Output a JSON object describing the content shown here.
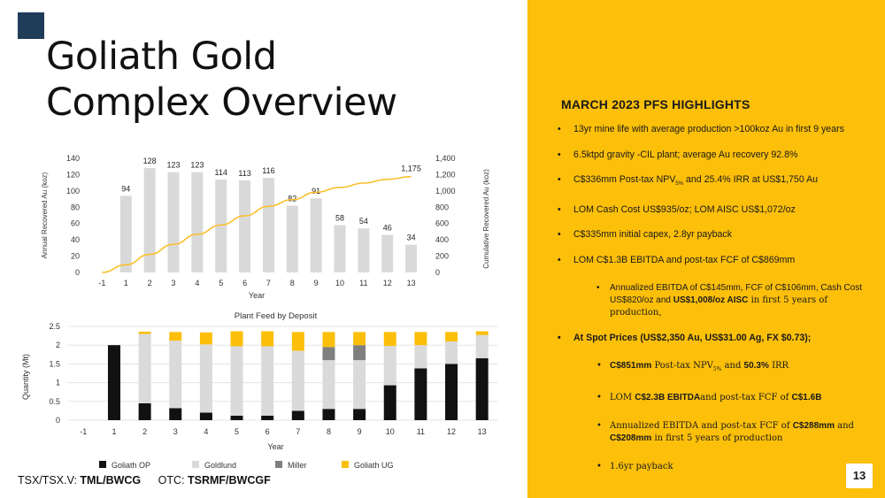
{
  "title_line1": "Goliath Gold",
  "title_line2": "Complex Overview",
  "highlights_title": "MARCH 2023 PFS HIGHLIGHTS",
  "highlights": [
    {
      "text": "13yr mine life with average production >100koz Au in first 9 years"
    },
    {
      "text": "6.5ktpd gravity -CIL plant; average Au recovery 92.8%"
    },
    {
      "pre": "C$336mm Post-tax NPV",
      "sub": "5%",
      "post": " and 25.4% IRR at US$1,750 Au"
    },
    {
      "text": "LOM Cash Cost US$935/oz; LOM AISC US$1,072/oz"
    },
    {
      "text": "C$335mm initial capex, 2.8yr payback"
    },
    {
      "text": "LOM C$1.3B EBITDA and post-tax FCF of C$869mm"
    }
  ],
  "ebitda_sub": {
    "part1": "Annualized EBITDA of C$145mm, FCF of C$106mm, Cash Cost US$820/oz and ",
    "bold": "US$1,008/oz AISC",
    "part2": " in first 5 years of production,"
  },
  "spot_title": "At Spot Prices (US$2,350 Au, US$31.00 Ag, FX $0.73);",
  "spot": {
    "npv_bold": "C$851mm",
    "npv_mid": " Post-tax NPV",
    "npv_sub": "5%",
    "npv_and": " and ",
    "irr_bold": "50.3%",
    "irr_post": " IRR",
    "lom_pre": "LOM ",
    "lom_bold1": "C$2.3B EBITDA",
    "lom_mid": "and post-tax FCF of ",
    "lom_bold2": "C$1.6B",
    "ann_pre": "Annualized EBITDA and post-tax FCF of ",
    "ann_bold1": "C$288mm",
    "ann_and": " and ",
    "ann_bold2": "C$208mm",
    "ann_post": " in first 5 years of production",
    "payback": "1.6yr payback"
  },
  "page_number": "13",
  "ticker": {
    "tsx_label": "TSX/TSX.V:",
    "tsx_value": "TML/BWCG",
    "otc_label": "OTC:",
    "otc_value": "TSRMF/BWCGF"
  },
  "colors": {
    "accent_yellow": "#fcbf0a",
    "logo_navy": "#1f3c58"
  },
  "chart_data": [
    {
      "type": "bar",
      "title": "",
      "xlabel": "Year",
      "ylabel": "Annual Recovered Au (koz)",
      "y2label": "Cumulative Recovered Au (koz)",
      "ylim": [
        0,
        140
      ],
      "y2lim": [
        0,
        1400
      ],
      "yticks": [
        "0",
        "20",
        "40",
        "60",
        "80",
        "100",
        "120",
        "140"
      ],
      "y2ticks": [
        "0",
        "200",
        "400",
        "600",
        "800",
        "1,000",
        "1,200",
        "1,400"
      ],
      "categories": [
        "-1",
        "1",
        "2",
        "3",
        "4",
        "5",
        "6",
        "7",
        "8",
        "9",
        "10",
        "11",
        "12",
        "13"
      ],
      "series": [
        {
          "name": "",
          "kind": "bar",
          "values": [
            0,
            94,
            128,
            123,
            123,
            114,
            113,
            116,
            82,
            91,
            58,
            54,
            46,
            34
          ],
          "color": "#d9d9d9"
        },
        {
          "name": "",
          "kind": "line",
          "axis": "secondary",
          "values": [
            0,
            94,
            222,
            345,
            468,
            582,
            695,
            811,
            893,
            984,
            1042,
            1096,
            1142,
            1175
          ],
          "color": "#fbc02d"
        }
      ],
      "bar_labels": [
        "",
        "94",
        "128",
        "123",
        "123",
        "114",
        "113",
        "116",
        "82",
        "91",
        "58",
        "54",
        "46",
        "34"
      ],
      "end_label": "1,175",
      "grid": false
    },
    {
      "type": "bar",
      "stacked": true,
      "title": "Plant Feed by Deposit",
      "xlabel": "Year",
      "ylabel": "Quantity (Mt)",
      "ylim": [
        0,
        2.5
      ],
      "yticks": [
        "0",
        "0.5",
        "1",
        "1.5",
        "2",
        "2.5"
      ],
      "categories": [
        "-1",
        "1",
        "2",
        "3",
        "4",
        "5",
        "6",
        "7",
        "8",
        "9",
        "10",
        "11",
        "12",
        "13"
      ],
      "series": [
        {
          "name": "Goliath OP",
          "color": "#111111",
          "values": [
            0,
            2.0,
            0.45,
            0.32,
            0.2,
            0.12,
            0.12,
            0.25,
            0.3,
            0.3,
            0.93,
            1.38,
            1.5,
            1.65
          ]
        },
        {
          "name": "Goldlund",
          "color": "#dadada",
          "values": [
            0,
            0,
            1.85,
            1.8,
            1.82,
            1.85,
            1.85,
            1.6,
            1.3,
            1.3,
            1.05,
            0.62,
            0.6,
            0.62
          ]
        },
        {
          "name": "Miller",
          "color": "#7f7f7f",
          "values": [
            0,
            0,
            0,
            0,
            0,
            0,
            0,
            0,
            0.35,
            0.4,
            0,
            0,
            0,
            0
          ]
        },
        {
          "name": "Goliath UG",
          "color": "#fbbf0a",
          "values": [
            0,
            0,
            0.06,
            0.23,
            0.32,
            0.4,
            0.4,
            0.5,
            0.4,
            0.35,
            0.37,
            0.35,
            0.25,
            0.1
          ]
        }
      ],
      "legend_position": "bottom",
      "grid": true
    }
  ]
}
